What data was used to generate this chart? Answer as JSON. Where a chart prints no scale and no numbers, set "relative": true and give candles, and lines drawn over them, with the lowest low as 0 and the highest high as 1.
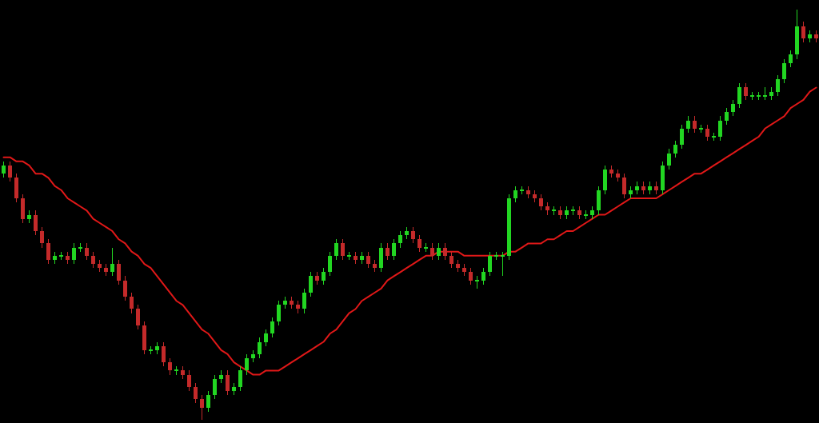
{
  "chart_data": {
    "type": "candlestick",
    "relative": true,
    "categories": [
      null,
      null,
      null,
      null,
      null,
      null,
      null,
      null,
      null,
      null,
      null,
      null,
      null,
      null,
      null,
      null,
      null,
      null,
      null,
      null,
      null,
      null,
      null,
      null,
      null,
      null,
      null,
      null,
      null,
      null,
      null,
      null,
      null,
      null,
      null,
      null,
      null,
      null,
      null,
      null,
      null,
      null,
      null,
      null,
      null,
      null,
      null,
      null,
      null,
      null,
      null,
      null,
      null,
      null,
      null,
      null,
      null,
      null,
      null,
      null,
      null,
      null,
      null,
      null,
      null,
      null,
      null,
      null,
      null,
      null,
      null,
      null,
      null,
      null,
      null,
      null,
      null,
      null,
      null,
      null,
      null,
      null,
      null,
      null,
      null,
      null,
      null,
      null,
      null,
      null,
      null,
      null,
      null,
      null,
      null,
      null,
      null,
      null,
      null,
      null,
      null,
      null,
      null,
      null,
      null,
      null,
      null,
      null,
      null,
      null,
      null,
      null,
      null,
      null,
      null,
      null,
      null,
      null,
      null,
      null,
      null,
      null,
      null,
      null,
      null,
      null,
      null,
      null
    ],
    "ohlc": [
      [
        0.6,
        0.63,
        0.59,
        0.62
      ],
      [
        0.62,
        0.63,
        0.58,
        0.59
      ],
      [
        0.59,
        0.6,
        0.53,
        0.54
      ],
      [
        0.54,
        0.55,
        0.48,
        0.49
      ],
      [
        0.49,
        0.51,
        0.48,
        0.5
      ],
      [
        0.5,
        0.51,
        0.45,
        0.46
      ],
      [
        0.46,
        0.47,
        0.42,
        0.43
      ],
      [
        0.43,
        0.44,
        0.38,
        0.39
      ],
      [
        0.39,
        0.41,
        0.38,
        0.4
      ],
      [
        0.4,
        0.41,
        0.39,
        0.4
      ],
      [
        0.4,
        0.41,
        0.38,
        0.39
      ],
      [
        0.39,
        0.43,
        0.38,
        0.42
      ],
      [
        0.42,
        0.43,
        0.41,
        0.42
      ],
      [
        0.42,
        0.43,
        0.39,
        0.4
      ],
      [
        0.4,
        0.41,
        0.37,
        0.38
      ],
      [
        0.38,
        0.39,
        0.36,
        0.37
      ],
      [
        0.37,
        0.38,
        0.35,
        0.36
      ],
      [
        0.36,
        0.42,
        0.35,
        0.38
      ],
      [
        0.38,
        0.39,
        0.33,
        0.34
      ],
      [
        0.34,
        0.35,
        0.29,
        0.3
      ],
      [
        0.3,
        0.31,
        0.26,
        0.27
      ],
      [
        0.27,
        0.28,
        0.22,
        0.23
      ],
      [
        0.23,
        0.24,
        0.16,
        0.17
      ],
      [
        0.17,
        0.18,
        0.16,
        0.17
      ],
      [
        0.17,
        0.19,
        0.16,
        0.18
      ],
      [
        0.18,
        0.19,
        0.13,
        0.14
      ],
      [
        0.14,
        0.15,
        0.11,
        0.12
      ],
      [
        0.12,
        0.13,
        0.11,
        0.12
      ],
      [
        0.12,
        0.13,
        0.1,
        0.11
      ],
      [
        0.11,
        0.12,
        0.07,
        0.08
      ],
      [
        0.08,
        0.09,
        0.04,
        0.05
      ],
      [
        0.05,
        0.06,
        0.0,
        0.03
      ],
      [
        0.03,
        0.07,
        0.02,
        0.06
      ],
      [
        0.06,
        0.11,
        0.05,
        0.1
      ],
      [
        0.1,
        0.12,
        0.09,
        0.11
      ],
      [
        0.11,
        0.12,
        0.06,
        0.07
      ],
      [
        0.07,
        0.09,
        0.06,
        0.08
      ],
      [
        0.08,
        0.13,
        0.07,
        0.12
      ],
      [
        0.12,
        0.16,
        0.11,
        0.15
      ],
      [
        0.15,
        0.17,
        0.14,
        0.16
      ],
      [
        0.16,
        0.2,
        0.15,
        0.19
      ],
      [
        0.19,
        0.22,
        0.18,
        0.21
      ],
      [
        0.21,
        0.25,
        0.2,
        0.24
      ],
      [
        0.24,
        0.29,
        0.23,
        0.28
      ],
      [
        0.28,
        0.3,
        0.27,
        0.29
      ],
      [
        0.29,
        0.3,
        0.27,
        0.28
      ],
      [
        0.28,
        0.29,
        0.26,
        0.27
      ],
      [
        0.27,
        0.32,
        0.26,
        0.31
      ],
      [
        0.31,
        0.36,
        0.3,
        0.35
      ],
      [
        0.35,
        0.36,
        0.33,
        0.34
      ],
      [
        0.34,
        0.37,
        0.33,
        0.36
      ],
      [
        0.36,
        0.41,
        0.35,
        0.4
      ],
      [
        0.4,
        0.44,
        0.39,
        0.43
      ],
      [
        0.43,
        0.44,
        0.39,
        0.4
      ],
      [
        0.4,
        0.41,
        0.39,
        0.4
      ],
      [
        0.4,
        0.41,
        0.38,
        0.39
      ],
      [
        0.39,
        0.41,
        0.38,
        0.4
      ],
      [
        0.4,
        0.41,
        0.37,
        0.38
      ],
      [
        0.38,
        0.39,
        0.36,
        0.37
      ],
      [
        0.37,
        0.43,
        0.36,
        0.42
      ],
      [
        0.42,
        0.43,
        0.39,
        0.4
      ],
      [
        0.4,
        0.44,
        0.39,
        0.43
      ],
      [
        0.43,
        0.46,
        0.42,
        0.45
      ],
      [
        0.45,
        0.47,
        0.44,
        0.46
      ],
      [
        0.46,
        0.47,
        0.43,
        0.44
      ],
      [
        0.44,
        0.45,
        0.41,
        0.42
      ],
      [
        0.42,
        0.43,
        0.41,
        0.42
      ],
      [
        0.42,
        0.43,
        0.39,
        0.4
      ],
      [
        0.4,
        0.43,
        0.39,
        0.42
      ],
      [
        0.42,
        0.43,
        0.39,
        0.4
      ],
      [
        0.4,
        0.41,
        0.37,
        0.38
      ],
      [
        0.38,
        0.39,
        0.36,
        0.37
      ],
      [
        0.37,
        0.38,
        0.35,
        0.36
      ],
      [
        0.36,
        0.37,
        0.33,
        0.34
      ],
      [
        0.34,
        0.35,
        0.32,
        0.34
      ],
      [
        0.34,
        0.37,
        0.33,
        0.36
      ],
      [
        0.36,
        0.41,
        0.35,
        0.4
      ],
      [
        0.4,
        0.41,
        0.39,
        0.4
      ],
      [
        0.4,
        0.41,
        0.35,
        0.4
      ],
      [
        0.4,
        0.55,
        0.39,
        0.54
      ],
      [
        0.54,
        0.57,
        0.53,
        0.56
      ],
      [
        0.56,
        0.57,
        0.55,
        0.56
      ],
      [
        0.56,
        0.57,
        0.54,
        0.55
      ],
      [
        0.55,
        0.56,
        0.53,
        0.54
      ],
      [
        0.54,
        0.55,
        0.51,
        0.52
      ],
      [
        0.52,
        0.53,
        0.5,
        0.51
      ],
      [
        0.51,
        0.52,
        0.5,
        0.51
      ],
      [
        0.51,
        0.52,
        0.49,
        0.5
      ],
      [
        0.5,
        0.52,
        0.49,
        0.51
      ],
      [
        0.51,
        0.52,
        0.5,
        0.51
      ],
      [
        0.51,
        0.52,
        0.49,
        0.5
      ],
      [
        0.5,
        0.51,
        0.49,
        0.5
      ],
      [
        0.5,
        0.52,
        0.49,
        0.51
      ],
      [
        0.51,
        0.57,
        0.5,
        0.56
      ],
      [
        0.56,
        0.62,
        0.55,
        0.61
      ],
      [
        0.61,
        0.62,
        0.59,
        0.6
      ],
      [
        0.6,
        0.61,
        0.58,
        0.59
      ],
      [
        0.59,
        0.6,
        0.54,
        0.55
      ],
      [
        0.55,
        0.57,
        0.54,
        0.56
      ],
      [
        0.56,
        0.58,
        0.55,
        0.57
      ],
      [
        0.57,
        0.58,
        0.55,
        0.56
      ],
      [
        0.56,
        0.58,
        0.55,
        0.57
      ],
      [
        0.57,
        0.58,
        0.55,
        0.56
      ],
      [
        0.56,
        0.63,
        0.55,
        0.62
      ],
      [
        0.62,
        0.66,
        0.61,
        0.65
      ],
      [
        0.65,
        0.68,
        0.64,
        0.67
      ],
      [
        0.67,
        0.72,
        0.66,
        0.71
      ],
      [
        0.71,
        0.74,
        0.7,
        0.73
      ],
      [
        0.73,
        0.74,
        0.7,
        0.71
      ],
      [
        0.71,
        0.72,
        0.7,
        0.71
      ],
      [
        0.71,
        0.72,
        0.68,
        0.69
      ],
      [
        0.69,
        0.7,
        0.68,
        0.69
      ],
      [
        0.69,
        0.74,
        0.68,
        0.73
      ],
      [
        0.73,
        0.76,
        0.72,
        0.75
      ],
      [
        0.75,
        0.78,
        0.74,
        0.77
      ],
      [
        0.77,
        0.82,
        0.76,
        0.81
      ],
      [
        0.81,
        0.82,
        0.78,
        0.79
      ],
      [
        0.79,
        0.8,
        0.78,
        0.79
      ],
      [
        0.79,
        0.8,
        0.78,
        0.79
      ],
      [
        0.79,
        0.81,
        0.78,
        0.79
      ],
      [
        0.79,
        0.81,
        0.78,
        0.8
      ],
      [
        0.8,
        0.84,
        0.79,
        0.83
      ],
      [
        0.83,
        0.88,
        0.82,
        0.87
      ],
      [
        0.87,
        0.9,
        0.86,
        0.89
      ],
      [
        0.89,
        1.0,
        0.88,
        0.96
      ],
      [
        0.96,
        0.97,
        0.92,
        0.93
      ],
      [
        0.93,
        0.95,
        0.92,
        0.94
      ],
      [
        0.94,
        0.95,
        0.92,
        0.93
      ]
    ],
    "series": [
      {
        "type": "line",
        "color": "#e01818",
        "values": [
          0.64,
          0.64,
          0.63,
          0.63,
          0.62,
          0.6,
          0.6,
          0.59,
          0.57,
          0.56,
          0.54,
          0.53,
          0.52,
          0.51,
          0.49,
          0.48,
          0.47,
          0.46,
          0.44,
          0.43,
          0.41,
          0.4,
          0.38,
          0.37,
          0.35,
          0.33,
          0.31,
          0.29,
          0.28,
          0.26,
          0.24,
          0.22,
          0.21,
          0.19,
          0.17,
          0.16,
          0.14,
          0.13,
          0.12,
          0.11,
          0.11,
          0.12,
          0.12,
          0.12,
          0.13,
          0.14,
          0.15,
          0.16,
          0.17,
          0.18,
          0.19,
          0.21,
          0.22,
          0.24,
          0.26,
          0.27,
          0.29,
          0.3,
          0.31,
          0.32,
          0.34,
          0.35,
          0.36,
          0.37,
          0.38,
          0.39,
          0.4,
          0.4,
          0.41,
          0.41,
          0.41,
          0.41,
          0.4,
          0.4,
          0.4,
          0.4,
          0.4,
          0.4,
          0.4,
          0.41,
          0.41,
          0.42,
          0.43,
          0.43,
          0.43,
          0.44,
          0.44,
          0.45,
          0.46,
          0.46,
          0.47,
          0.48,
          0.49,
          0.5,
          0.5,
          0.51,
          0.52,
          0.53,
          0.54,
          0.54,
          0.54,
          0.54,
          0.54,
          0.55,
          0.56,
          0.57,
          0.58,
          0.59,
          0.6,
          0.6,
          0.61,
          0.62,
          0.63,
          0.64,
          0.65,
          0.66,
          0.67,
          0.68,
          0.69,
          0.71,
          0.72,
          0.73,
          0.74,
          0.76,
          0.77,
          0.78,
          0.8,
          0.81
        ]
      }
    ]
  }
}
